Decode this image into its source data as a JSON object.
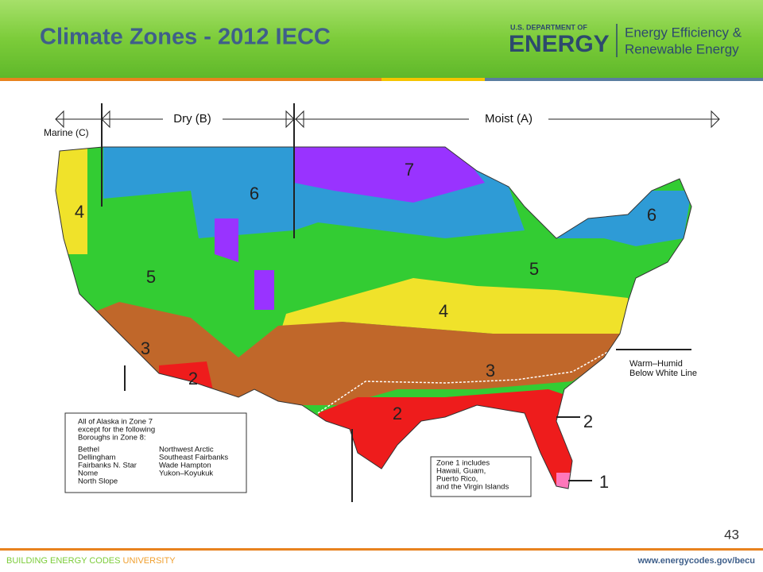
{
  "header": {
    "title": "Climate Zones - 2012 IECC",
    "logo": {
      "department": "U.S. DEPARTMENT OF",
      "agency": "ENERGY",
      "office": [
        "Energy Efficiency &",
        "Renewable Energy"
      ]
    }
  },
  "map": {
    "moisture_regimes": {
      "marine": "Marine (C)",
      "dry": "Dry (B)",
      "moist": "Moist (A)"
    },
    "zone_labels": [
      "7",
      "6",
      "4",
      "6",
      "5",
      "5",
      "4",
      "3",
      "3",
      "2",
      "2",
      "2",
      "1"
    ],
    "warm_humid": [
      "Warm–Humid",
      "Below White Line"
    ],
    "alaska_note": {
      "intro": [
        "All of Alaska in Zone 7",
        "except for the following",
        "Boroughs in Zone 8:"
      ],
      "boroughs_left": [
        "Bethel",
        "Dellingham",
        "Fairbanks N. Star",
        "Nome",
        "North Slope"
      ],
      "boroughs_right": [
        "Northwest Arctic",
        "Southeast Fairbanks",
        "Wade Hampton",
        "Yukon–Koyukuk"
      ]
    },
    "zone1_note": [
      "Zone 1 includes",
      "Hawaii, Guam,",
      "Puerto Rico,",
      "and the Virgin Islands"
    ]
  },
  "page_number": "43",
  "footer": {
    "program": "BUILDING ENERGY CODES",
    "program_highlight": "UNIVERSITY",
    "url": "www.energycodes.gov/becu"
  }
}
